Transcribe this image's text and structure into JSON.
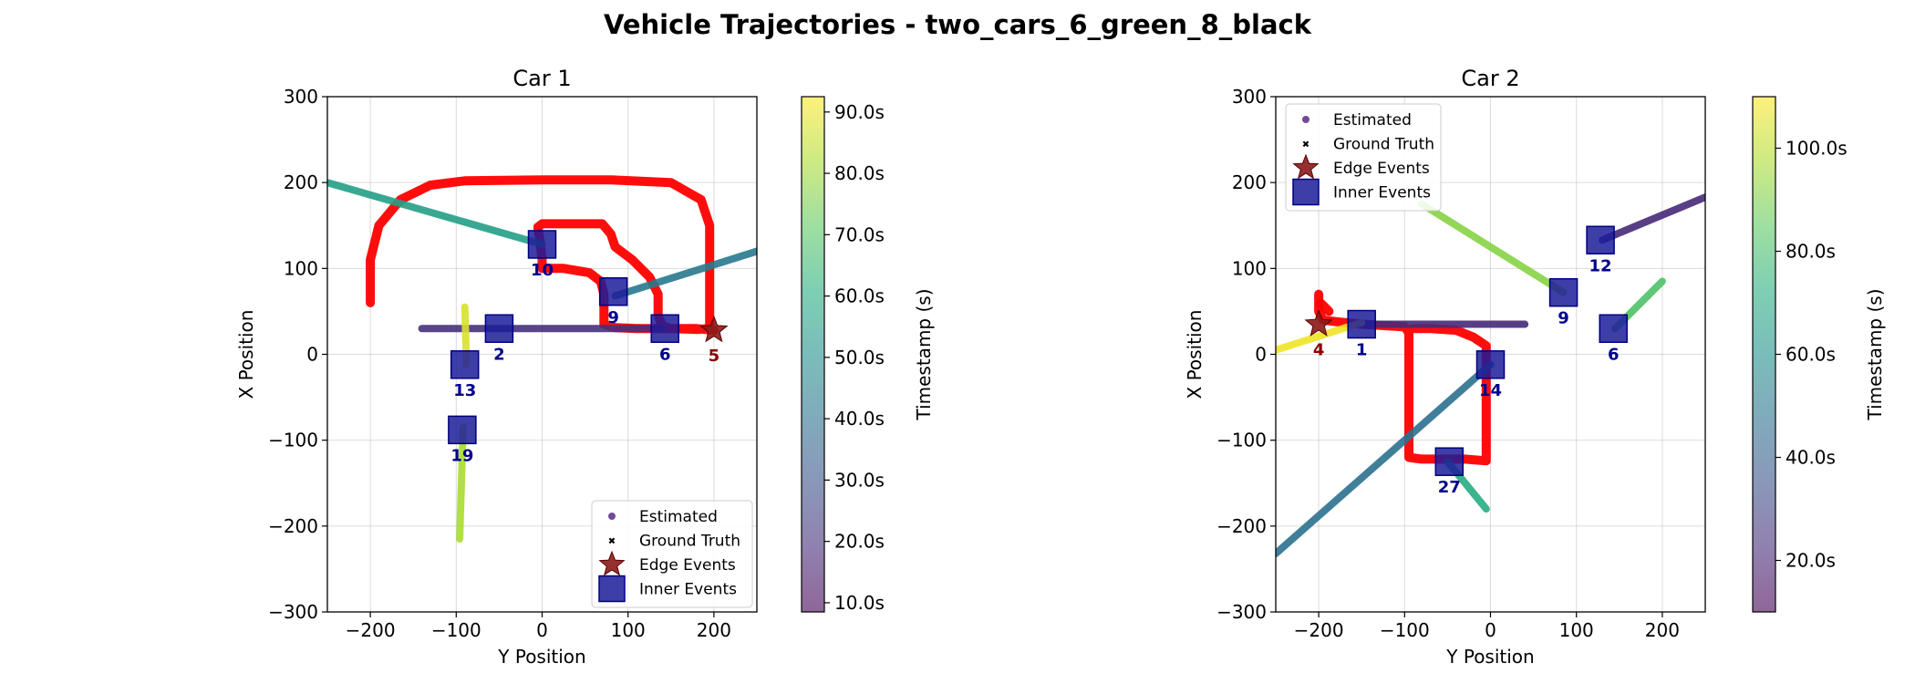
{
  "chart_data": {
    "type": "line",
    "title": "Vehicle Trajectories - two_cars_6_green_8_black",
    "colormap": "viridis",
    "legend_entries": [
      "Estimated",
      "Ground Truth",
      "Edge Events",
      "Inner Events"
    ],
    "colors": {
      "ground_truth": "#ff0000",
      "edge_event": "#8b1a1a",
      "inner_event": "#1c1c99"
    },
    "panels": [
      {
        "title": "Car 1",
        "xlabel": "Y Position",
        "ylabel": "X Position",
        "xlim": [
          -250,
          250
        ],
        "ylim": [
          -300,
          300
        ],
        "xticks": [
          -200,
          -100,
          0,
          100,
          200
        ],
        "yticks": [
          -300,
          -200,
          -100,
          0,
          100,
          200,
          300
        ],
        "xtick_labels": [
          "−200",
          "−100",
          "0",
          "100",
          "200"
        ],
        "ytick_labels": [
          "−300",
          "−200",
          "−100",
          "0",
          "100",
          "200",
          "300"
        ],
        "legend_position": "lower-right",
        "colorbar": {
          "label": "Timestamp (s)",
          "range": [
            8.5,
            92.5
          ],
          "ticks": [
            10,
            20,
            30,
            40,
            50,
            60,
            70,
            80,
            90
          ],
          "tick_labels": [
            "10.0s",
            "20.0s",
            "30.0s",
            "40.0s",
            "50.0s",
            "60.0s",
            "70.0s",
            "80.0s",
            "90.0s"
          ]
        },
        "ground_truth_paths": [
          [
            [
              -200,
              60
            ],
            [
              -200,
              110
            ],
            [
              -190,
              150
            ],
            [
              -165,
              180
            ],
            [
              -130,
              197
            ],
            [
              -90,
              202
            ],
            [
              0,
              203
            ],
            [
              80,
              203
            ],
            [
              150,
              200
            ],
            [
              185,
              180
            ],
            [
              195,
              150
            ],
            [
              195,
              110
            ],
            [
              195,
              70
            ],
            [
              195,
              40
            ],
            [
              195,
              30
            ],
            [
              180,
              29
            ],
            [
              150,
              30
            ],
            [
              140,
              33
            ],
            [
              135,
              45
            ],
            [
              135,
              70
            ],
            [
              125,
              90
            ],
            [
              105,
              110
            ],
            [
              85,
              125
            ],
            [
              80,
              140
            ],
            [
              70,
              152
            ],
            [
              0,
              152
            ],
            [
              -5,
              148
            ],
            [
              -3,
              135
            ],
            [
              0,
              110
            ],
            [
              0,
              100
            ],
            [
              25,
              100
            ],
            [
              55,
              95
            ],
            [
              68,
              85
            ],
            [
              72,
              70
            ],
            [
              72,
              50
            ],
            [
              72,
              35
            ],
            [
              85,
              31
            ],
            [
              110,
              30
            ],
            [
              130,
              30
            ],
            [
              150,
              30
            ],
            [
              180,
              30
            ],
            [
              200,
              28
            ]
          ]
        ],
        "estimated_segments": [
          {
            "from": [
              -250,
              200
            ],
            "to": [
              0,
              128
            ],
            "t": 56
          },
          {
            "from": [
              -140,
              30
            ],
            "to": [
              140,
              30
            ],
            "t": 20
          },
          {
            "from": [
              85,
              68
            ],
            "to": [
              250,
              120
            ],
            "t": 43
          },
          {
            "from": [
              -90,
              55
            ],
            "to": [
              -88,
              -12
            ],
            "t": 88
          },
          {
            "from": [
              -92,
              -85
            ],
            "to": [
              -96,
              -215
            ],
            "t": 82
          }
        ],
        "edge_events": [
          {
            "id": "5",
            "y": 200,
            "x": 28
          }
        ],
        "inner_events": [
          {
            "id": "2",
            "y": -50,
            "x": 30
          },
          {
            "id": "6",
            "y": 143,
            "x": 30
          },
          {
            "id": "9",
            "y": 83,
            "x": 73
          },
          {
            "id": "10",
            "y": 0,
            "x": 128
          },
          {
            "id": "13",
            "y": -90,
            "x": -12
          },
          {
            "id": "19",
            "y": -93,
            "x": -88
          }
        ]
      },
      {
        "title": "Car 2",
        "xlabel": "Y Position",
        "ylabel": "X Position",
        "xlim": [
          -250,
          250
        ],
        "ylim": [
          -300,
          300
        ],
        "xticks": [
          -200,
          -100,
          0,
          100,
          200
        ],
        "yticks": [
          -300,
          -200,
          -100,
          0,
          100,
          200,
          300
        ],
        "xtick_labels": [
          "−200",
          "−100",
          "0",
          "100",
          "200"
        ],
        "ytick_labels": [
          "−300",
          "−200",
          "−100",
          "0",
          "100",
          "200",
          "300"
        ],
        "legend_position": "upper-left",
        "colorbar": {
          "label": "Timestamp (s)",
          "range": [
            10,
            110
          ],
          "ticks": [
            20,
            40,
            60,
            80,
            100
          ],
          "tick_labels": [
            "20.0s",
            "40.0s",
            "60.0s",
            "80.0s",
            "100.0s"
          ]
        },
        "ground_truth_paths": [
          [
            [
              -200,
              70
            ],
            [
              -200,
              50
            ],
            [
              -195,
              40
            ],
            [
              -180,
              38
            ],
            [
              -150,
              35
            ],
            [
              -100,
              32
            ],
            [
              -95,
              25
            ],
            [
              -95,
              0
            ],
            [
              -95,
              -50
            ],
            [
              -95,
              -100
            ],
            [
              -95,
              -120
            ],
            [
              -80,
              -122
            ],
            [
              -50,
              -122
            ],
            [
              -30,
              -122
            ],
            [
              -5,
              -124
            ],
            [
              -5,
              -100
            ],
            [
              -5,
              -50
            ],
            [
              -5,
              0
            ],
            [
              -5,
              10
            ],
            [
              -20,
              20
            ],
            [
              -40,
              28
            ],
            [
              -70,
              30
            ],
            [
              -90,
              30
            ]
          ],
          [
            [
              -198,
              60
            ],
            [
              -193,
              55
            ],
            [
              -188,
              50
            ]
          ]
        ],
        "estimated_segments": [
          {
            "from": [
              -80,
              175
            ],
            "to": [
              85,
              72
            ],
            "t": 92
          },
          {
            "from": [
              130,
              133
            ],
            "to": [
              250,
              183
            ],
            "t": 22
          },
          {
            "from": [
              -150,
              35
            ],
            "to": [
              40,
              35
            ],
            "t": 22
          },
          {
            "from": [
              -250,
              5
            ],
            "to": [
              -150,
              37
            ],
            "t": 108
          },
          {
            "from": [
              -250,
              -232
            ],
            "to": [
              0,
              -12
            ],
            "t": 48
          },
          {
            "from": [
              145,
              30
            ],
            "to": [
              200,
              85
            ],
            "t": 82
          },
          {
            "from": [
              -50,
              -125
            ],
            "to": [
              -5,
              -180
            ],
            "t": 72
          }
        ],
        "edge_events": [
          {
            "id": "4",
            "y": -200,
            "x": 35
          }
        ],
        "inner_events": [
          {
            "id": "1",
            "y": -150,
            "x": 35
          },
          {
            "id": "6",
            "y": 143,
            "x": 30
          },
          {
            "id": "9",
            "y": 85,
            "x": 72
          },
          {
            "id": "12",
            "y": 128,
            "x": 133
          },
          {
            "id": "14",
            "y": 0,
            "x": -12
          },
          {
            "id": "27",
            "y": -48,
            "x": -125
          }
        ]
      }
    ]
  }
}
